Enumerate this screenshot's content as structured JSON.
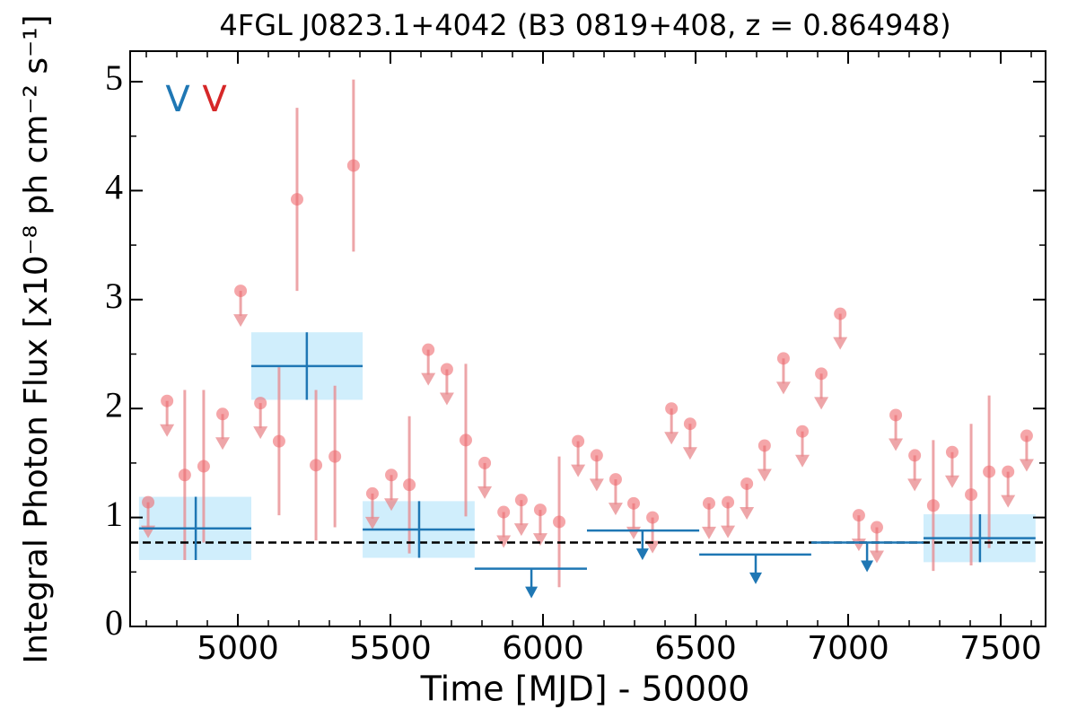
{
  "chart_data": {
    "type": "lightcurve",
    "title": "4FGL J0823.1+4042 (B3 0819+408, z = 0.864948)",
    "x_label": "Time [MJD] - 50000",
    "y_label": "Integral Photon Flux [x10⁻⁸ ph cm⁻² s⁻¹]",
    "xlim": [
      4647,
      7647
    ],
    "ylim": [
      0,
      5.28
    ],
    "xticks": [
      5000,
      5500,
      6000,
      6500,
      7000,
      7500
    ],
    "yticks": [
      0,
      1,
      2,
      3,
      4,
      5
    ],
    "xminorticks": [
      4700,
      4800,
      4900,
      5100,
      5200,
      5300,
      5400,
      5600,
      5700,
      5800,
      5900,
      6100,
      6200,
      6300,
      6400,
      6600,
      6700,
      6800,
      6900,
      7100,
      7200,
      7300,
      7400,
      7600
    ],
    "yminorticks": [
      0.5,
      1.5,
      2.5,
      3.5,
      4.5
    ],
    "mean_flux": 0.77,
    "series": [
      {
        "name": "V",
        "color": "#1f77b4",
        "band_color": "#d0eefc",
        "x": [
          4862,
          5226,
          5594,
          5962,
          6326,
          6697,
          7062,
          7432
        ],
        "x_lo": [
          4676,
          5044,
          5409,
          5776,
          6144,
          6512,
          6879,
          7247
        ],
        "x_hi": [
          5044,
          5409,
          5776,
          6144,
          6512,
          6879,
          7247,
          7614
        ],
        "values": [
          0.9,
          2.39,
          0.89,
          0.53,
          0.88,
          0.66,
          0.77,
          0.81
        ],
        "errors": [
          0.29,
          0.31,
          0.26,
          null,
          null,
          null,
          null,
          0.22
        ],
        "upper_limits": [
          false,
          false,
          false,
          true,
          true,
          true,
          true,
          false
        ]
      },
      {
        "name": "V",
        "color": "#e8888c",
        "x": [
          4706,
          4768,
          4826,
          4888,
          4950,
          5009,
          5074,
          5135,
          5194,
          5256,
          5318,
          5379,
          5441,
          5503,
          5562,
          5624,
          5685,
          5747,
          5809,
          5871,
          5929,
          5991,
          6053,
          6115,
          6176,
          6238,
          6297,
          6359,
          6421,
          6482,
          6544,
          6606,
          6668,
          6726,
          6788,
          6850,
          6912,
          6974,
          7035,
          7094,
          7156,
          7218,
          7279,
          7341,
          7403,
          7462,
          7524,
          7585
        ],
        "values": [
          1.14,
          2.07,
          1.39,
          1.47,
          1.95,
          3.08,
          2.05,
          1.7,
          3.92,
          1.48,
          1.56,
          4.23,
          1.22,
          1.39,
          1.3,
          2.54,
          2.36,
          1.71,
          1.5,
          1.05,
          1.16,
          1.07,
          0.96,
          1.7,
          1.57,
          1.35,
          1.13,
          1.0,
          2.0,
          1.86,
          1.13,
          1.14,
          1.31,
          1.66,
          2.46,
          1.79,
          2.32,
          2.87,
          1.02,
          0.91,
          1.94,
          1.57,
          1.11,
          1.6,
          1.21,
          1.42,
          1.42,
          1.75
        ],
        "errors": [
          null,
          null,
          0.78,
          0.7,
          null,
          null,
          null,
          0.68,
          0.84,
          0.69,
          0.65,
          0.79,
          null,
          null,
          0.63,
          null,
          null,
          0.7,
          null,
          null,
          null,
          null,
          0.6,
          null,
          null,
          null,
          null,
          null,
          null,
          null,
          null,
          null,
          null,
          null,
          null,
          null,
          null,
          null,
          null,
          null,
          null,
          null,
          0.6,
          null,
          0.65,
          0.7,
          null,
          null
        ],
        "upper_limits": [
          true,
          true,
          false,
          false,
          true,
          true,
          true,
          false,
          false,
          false,
          false,
          false,
          true,
          true,
          false,
          true,
          true,
          false,
          true,
          true,
          true,
          true,
          false,
          true,
          true,
          true,
          true,
          true,
          true,
          true,
          true,
          true,
          true,
          true,
          true,
          true,
          true,
          true,
          true,
          true,
          true,
          true,
          false,
          true,
          false,
          false,
          true,
          true
        ]
      }
    ]
  }
}
